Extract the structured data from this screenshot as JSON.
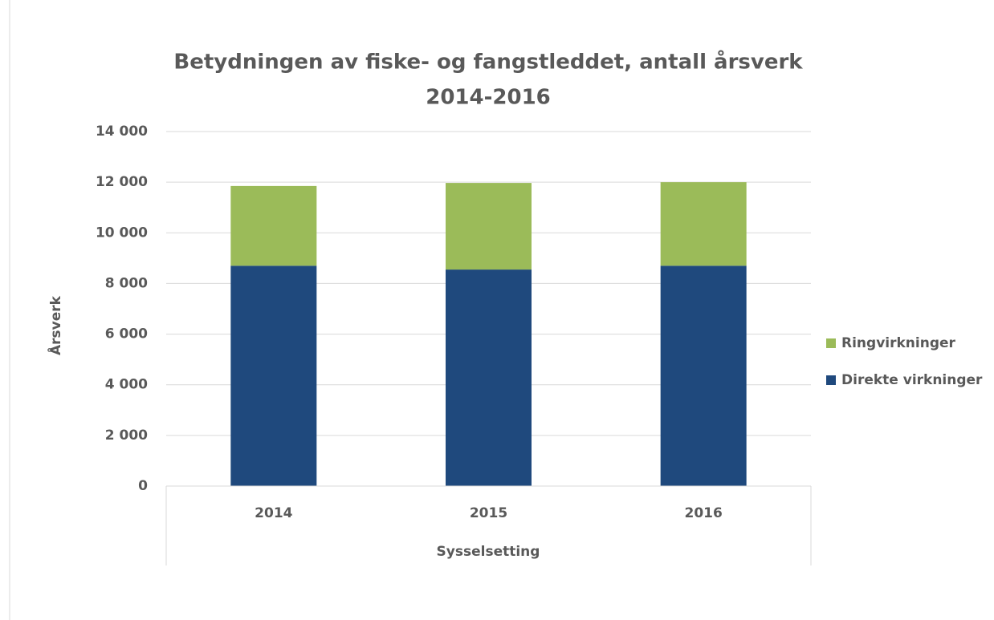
{
  "chart_data": {
    "type": "stacked_bar",
    "title": [
      "Betydningen av fiske- og fangstleddet, antall årsverk",
      "2014-2016"
    ],
    "y_label": "Årsverk",
    "x_label": "Sysselsetting",
    "categories": [
      "2014",
      "2015",
      "2016"
    ],
    "series": [
      {
        "name": "Direkte virkninger",
        "color": "#1f497d",
        "values": [
          8700,
          8550,
          8700
        ]
      },
      {
        "name": "Ringvirkninger",
        "color": "#9bbb59",
        "values": [
          3150,
          3420,
          3300
        ]
      }
    ],
    "ylim": [
      0,
      14000
    ],
    "yticks": [
      0,
      {
        "value": 2000,
        "label": "2 000"
      },
      {
        "value": 4000,
        "label": "4 000"
      },
      {
        "value": 6000,
        "label": "6 000"
      },
      {
        "value": 8000,
        "label": "8 000"
      },
      {
        "value": 10000,
        "label": "10 000"
      },
      {
        "value": 12000,
        "label": "12 000"
      },
      {
        "value": 14000,
        "label": "14 000"
      }
    ],
    "grid": true,
    "legend": "right"
  }
}
